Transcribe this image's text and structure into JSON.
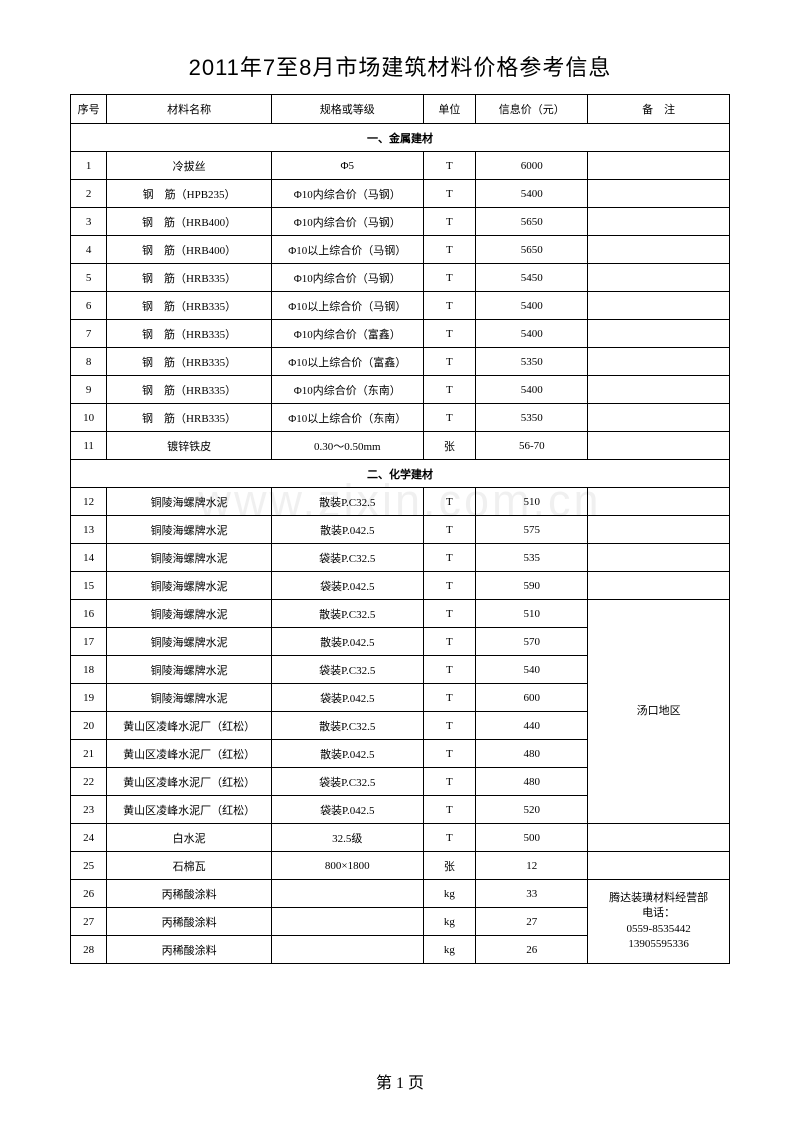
{
  "title": "2011年7至8月市场建筑材料价格参考信息",
  "pageNumber": "第 1 页",
  "watermark": "www.zixin.com.cn",
  "headers": {
    "seq": "序号",
    "name": "材料名称",
    "spec": "规格或等级",
    "unit": "单位",
    "price": "信息价（元）",
    "remark": "备　注"
  },
  "section1": {
    "title": "一、金属建材",
    "rows": [
      {
        "seq": "1",
        "name": "冷拔丝",
        "spec": "Φ5",
        "unit": "T",
        "price": "6000",
        "remark": ""
      },
      {
        "seq": "2",
        "name": "钢　筋（HPB235）",
        "spec": "Φ10内综合价（马钢）",
        "unit": "T",
        "price": "5400",
        "remark": ""
      },
      {
        "seq": "3",
        "name": "钢　筋（HRB400）",
        "spec": "Φ10内综合价（马钢）",
        "unit": "T",
        "price": "5650",
        "remark": ""
      },
      {
        "seq": "4",
        "name": "钢　筋（HRB400）",
        "spec": "Φ10以上综合价（马钢）",
        "unit": "T",
        "price": "5650",
        "remark": ""
      },
      {
        "seq": "5",
        "name": "钢　筋（HRB335）",
        "spec": "Φ10内综合价（马钢）",
        "unit": "T",
        "price": "5450",
        "remark": ""
      },
      {
        "seq": "6",
        "name": "钢　筋（HRB335）",
        "spec": "Φ10以上综合价（马钢）",
        "unit": "T",
        "price": "5400",
        "remark": ""
      },
      {
        "seq": "7",
        "name": "钢　筋（HRB335）",
        "spec": "Φ10内综合价（富鑫）",
        "unit": "T",
        "price": "5400",
        "remark": ""
      },
      {
        "seq": "8",
        "name": "钢　筋（HRB335）",
        "spec": "Φ10以上综合价（富鑫）",
        "unit": "T",
        "price": "5350",
        "remark": ""
      },
      {
        "seq": "9",
        "name": "钢　筋（HRB335）",
        "spec": "Φ10内综合价（东南）",
        "unit": "T",
        "price": "5400",
        "remark": ""
      },
      {
        "seq": "10",
        "name": "钢　筋（HRB335）",
        "spec": "Φ10以上综合价（东南）",
        "unit": "T",
        "price": "5350",
        "remark": ""
      },
      {
        "seq": "11",
        "name": "镀锌铁皮",
        "spec": "0.30～0.50mm",
        "unit": "张",
        "price": "56-70",
        "remark": ""
      }
    ]
  },
  "section2": {
    "title": "二、化学建材",
    "rows1": [
      {
        "seq": "12",
        "name": "铜陵海螺牌水泥",
        "spec": "散装P.C32.5",
        "unit": "T",
        "price": "510",
        "remark": ""
      },
      {
        "seq": "13",
        "name": "铜陵海螺牌水泥",
        "spec": "散装P.042.5",
        "unit": "T",
        "price": "575",
        "remark": ""
      },
      {
        "seq": "14",
        "name": "铜陵海螺牌水泥",
        "spec": "袋装P.C32.5",
        "unit": "T",
        "price": "535",
        "remark": ""
      },
      {
        "seq": "15",
        "name": "铜陵海螺牌水泥",
        "spec": "袋装P.042.5",
        "unit": "T",
        "price": "590",
        "remark": ""
      }
    ],
    "mergedRows1": {
      "remark": "汤口地区",
      "rows": [
        {
          "seq": "16",
          "name": "铜陵海螺牌水泥",
          "spec": "散装P.C32.5",
          "unit": "T",
          "price": "510"
        },
        {
          "seq": "17",
          "name": "铜陵海螺牌水泥",
          "spec": "散装P.042.5",
          "unit": "T",
          "price": "570"
        },
        {
          "seq": "18",
          "name": "铜陵海螺牌水泥",
          "spec": "袋装P.C32.5",
          "unit": "T",
          "price": "540"
        },
        {
          "seq": "19",
          "name": "铜陵海螺牌水泥",
          "spec": "袋装P.042.5",
          "unit": "T",
          "price": "600"
        },
        {
          "seq": "20",
          "name": "黄山区凌峰水泥厂（红松）",
          "spec": "散装P.C32.5",
          "unit": "T",
          "price": "440"
        },
        {
          "seq": "21",
          "name": "黄山区凌峰水泥厂（红松）",
          "spec": "散装P.042.5",
          "unit": "T",
          "price": "480"
        },
        {
          "seq": "22",
          "name": "黄山区凌峰水泥厂（红松）",
          "spec": "袋装P.C32.5",
          "unit": "T",
          "price": "480"
        },
        {
          "seq": "23",
          "name": "黄山区凌峰水泥厂（红松）",
          "spec": "袋装P.042.5",
          "unit": "T",
          "price": "520"
        }
      ]
    },
    "rows2": [
      {
        "seq": "24",
        "name": "白水泥",
        "spec": "32.5级",
        "unit": "T",
        "price": "500",
        "remark": ""
      },
      {
        "seq": "25",
        "name": "石棉瓦",
        "spec": "800×1800",
        "unit": "张",
        "price": "12",
        "remark": ""
      }
    ],
    "mergedRows2": {
      "remark": "腾达装璜材料经营部\n电话：\n0559-8535442\n13905595336",
      "rows": [
        {
          "seq": "26",
          "name": "丙稀酸涂料",
          "spec": "",
          "unit": "kg",
          "price": "33"
        },
        {
          "seq": "27",
          "name": "丙稀酸涂料",
          "spec": "",
          "unit": "kg",
          "price": "27"
        },
        {
          "seq": "28",
          "name": "丙稀酸涂料",
          "spec": "",
          "unit": "kg",
          "price": "26"
        }
      ]
    }
  }
}
